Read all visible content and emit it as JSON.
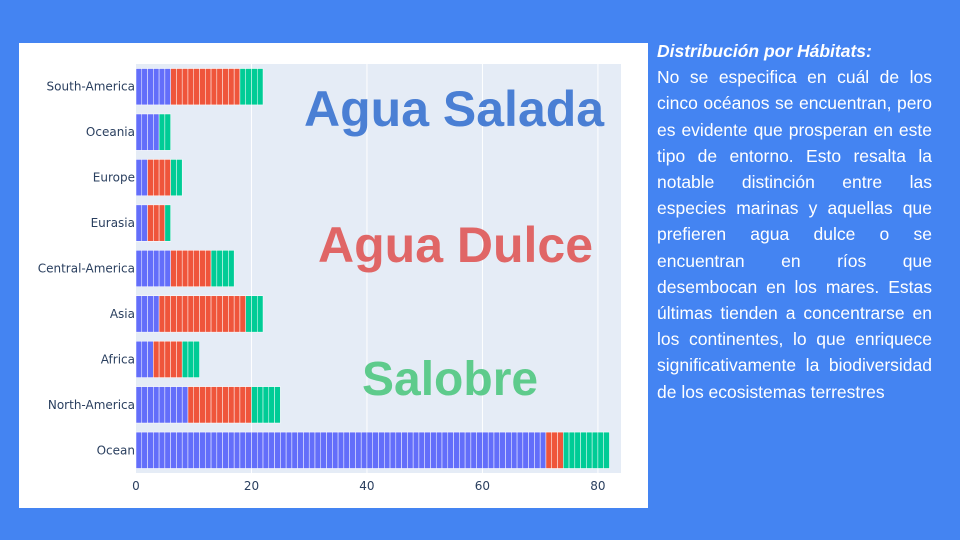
{
  "slide": {
    "background_color": "#4484f2",
    "text_title": "Distribución por Hábitats:",
    "text_body": "No se especifica en cuál de los cinco océanos se encuentran, pero es evidente que prosperan en este tipo de entorno. Esto resalta la notable distinción entre las especies marinas y aquellas que prefieren agua dulce o se encuentran en ríos que desembocan en los mares. Estas últimas tienden a concentrarse en los continentes, lo que enriquece significativamente la biodiversidad de los ecosistemas terrestres"
  },
  "chart_data": {
    "type": "bar",
    "orientation": "horizontal",
    "stacked": true,
    "categories": [
      "Ocean",
      "North-America",
      "Africa",
      "Asia",
      "Central-America",
      "Eurasia",
      "Europe",
      "Oceania",
      "South-America"
    ],
    "series": [
      {
        "name": "Agua Salada",
        "color": "#636efa",
        "values": [
          71,
          9,
          3,
          4,
          6,
          2,
          2,
          4,
          6
        ]
      },
      {
        "name": "Agua Dulce",
        "color": "#ef553b",
        "values": [
          3,
          11,
          5,
          15,
          7,
          3,
          4,
          0,
          12
        ]
      },
      {
        "name": "Salobre",
        "color": "#00cc96",
        "values": [
          8,
          5,
          3,
          3,
          4,
          1,
          2,
          2,
          4
        ]
      }
    ],
    "xlim": [
      0,
      84
    ],
    "xticks": [
      0,
      20,
      40,
      60,
      80
    ],
    "grid": true,
    "plot_background": "#e5ecf6",
    "overlay_labels": [
      {
        "text": "Agua Salada",
        "color": "#4a7fd4"
      },
      {
        "text": "Agua Dulce",
        "color": "#e06666"
      },
      {
        "text": "Salobre",
        "color": "#5ecb8c"
      }
    ]
  }
}
